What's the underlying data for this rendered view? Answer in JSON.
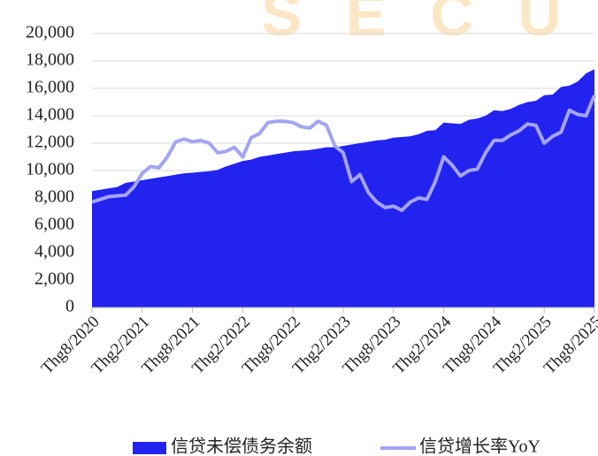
{
  "chart_data": {
    "type": "area-line",
    "watermark": "SECU",
    "categories": [
      "Thg8/2020",
      null,
      null,
      null,
      null,
      null,
      "Thg2/2021",
      null,
      null,
      null,
      null,
      null,
      "Thg8/2021",
      null,
      null,
      null,
      null,
      null,
      "Thg2/2022",
      null,
      null,
      null,
      null,
      null,
      "Thg8/2022",
      null,
      null,
      null,
      null,
      null,
      "Thg2/2023",
      null,
      null,
      null,
      null,
      null,
      "Thg8/2023",
      null,
      null,
      null,
      null,
      null,
      "Thg2/2024",
      null,
      null,
      null,
      null,
      null,
      "Thg8/2024",
      null,
      null,
      null,
      null,
      null,
      "Thg2/2025",
      null,
      null,
      null,
      null,
      null,
      "Thg8/2025"
    ],
    "series": [
      {
        "name": "信贷未偿债务余额",
        "color": "#2323f0",
        "values": [
          8500,
          8600,
          8700,
          8800,
          9100,
          9200,
          9300,
          9400,
          9500,
          9600,
          9700,
          9800,
          9850,
          9900,
          9950,
          10050,
          10300,
          10500,
          10700,
          10800,
          11000,
          11100,
          11200,
          11300,
          11400,
          11450,
          11500,
          11600,
          11700,
          11700,
          11800,
          11900,
          12000,
          12100,
          12200,
          12250,
          12400,
          12450,
          12500,
          12650,
          12900,
          12950,
          13500,
          13450,
          13400,
          13700,
          13800,
          14000,
          14400,
          14350,
          14500,
          14800,
          15000,
          15100,
          15500,
          15550,
          16100,
          16200,
          16500,
          17100,
          17400
        ]
      },
      {
        "name": "信贷增长率YoY",
        "color": "#a4a4f4",
        "values": [
          7700,
          7900,
          8100,
          8150,
          8200,
          8800,
          9800,
          10300,
          10200,
          11000,
          12100,
          12300,
          12100,
          12200,
          12000,
          11300,
          11400,
          11700,
          11000,
          12400,
          12700,
          13500,
          13600,
          13600,
          13500,
          13200,
          13100,
          13600,
          13300,
          11800,
          11300,
          9200,
          9700,
          8400,
          7700,
          7300,
          7400,
          7100,
          7700,
          8000,
          7900,
          9200,
          11000,
          10400,
          9600,
          10000,
          10100,
          11300,
          12200,
          12200,
          12600,
          12900,
          13400,
          13300,
          12000,
          12500,
          12800,
          14400,
          14100,
          14000,
          15500
        ]
      }
    ],
    "ylim": [
      0,
      20000
    ],
    "yticks": [
      0,
      {
        "value": 2000,
        "label": "2,000"
      },
      {
        "value": 4000,
        "label": "4,000"
      },
      {
        "value": 6000,
        "label": "6,000"
      },
      {
        "value": 8000,
        "label": "8,000"
      },
      {
        "value": 10000,
        "label": "10,000"
      },
      {
        "value": 12000,
        "label": "12,000"
      },
      {
        "value": 14000,
        "label": "14,000"
      },
      {
        "value": 16000,
        "label": "16,000"
      },
      {
        "value": 18000,
        "label": "18,000"
      },
      {
        "value": 20000,
        "label": "20,000"
      }
    ],
    "grid": true
  }
}
